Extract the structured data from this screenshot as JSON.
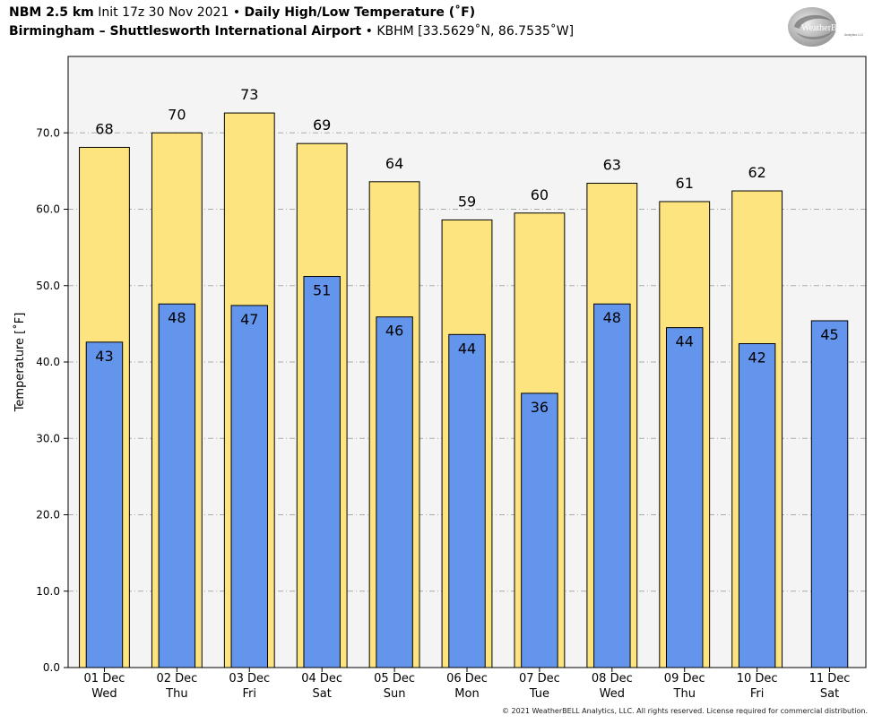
{
  "header": {
    "model": "NBM 2.5 km",
    "init": "Init 17z 30 Nov 2021",
    "bullet": "•",
    "product": "Daily High/Low Temperature (˚F)",
    "location": "Birmingham – Shuttlesworth International Airport",
    "station": "KBHM [33.5629˚N, 86.7535˚W]"
  },
  "logo": {
    "text": "WeatherBELL",
    "sub": "Analytics LLC"
  },
  "footer": {
    "copyright": "© 2021 WeatherBELL Analytics, LLC. All rights reserved. License required for commercial distribution."
  },
  "colors": {
    "high": "#fde47f",
    "low": "#6495ed",
    "plot_bg": "#f4f4f4",
    "grid": "#aaaaaa"
  },
  "chart_data": {
    "type": "bar",
    "title": "Daily High/Low Temperature (˚F)",
    "ylabel": "Temperature [˚F]",
    "ylim": [
      0,
      80
    ],
    "yticks": [
      "0.0",
      "10.0",
      "20.0",
      "30.0",
      "40.0",
      "50.0",
      "60.0",
      "70.0"
    ],
    "grid": true,
    "categories": [
      {
        "date": "01 Dec",
        "day": "Wed"
      },
      {
        "date": "02 Dec",
        "day": "Thu"
      },
      {
        "date": "03 Dec",
        "day": "Fri"
      },
      {
        "date": "04 Dec",
        "day": "Sat"
      },
      {
        "date": "05 Dec",
        "day": "Sun"
      },
      {
        "date": "06 Dec",
        "day": "Mon"
      },
      {
        "date": "07 Dec",
        "day": "Tue"
      },
      {
        "date": "08 Dec",
        "day": "Wed"
      },
      {
        "date": "09 Dec",
        "day": "Thu"
      },
      {
        "date": "10 Dec",
        "day": "Fri"
      },
      {
        "date": "11 Dec",
        "day": "Sat"
      }
    ],
    "series": [
      {
        "key": "high",
        "values": [
          68.1,
          70.0,
          72.6,
          68.6,
          63.6,
          58.6,
          59.5,
          63.4,
          61.0,
          62.4,
          null
        ],
        "labels": [
          "68",
          "70",
          "73",
          "69",
          "64",
          "59",
          "60",
          "63",
          "61",
          "62",
          ""
        ]
      },
      {
        "key": "low",
        "values": [
          42.6,
          47.6,
          47.4,
          51.2,
          45.9,
          43.6,
          35.9,
          47.6,
          44.5,
          42.4,
          45.4
        ],
        "labels": [
          "43",
          "48",
          "47",
          "51",
          "46",
          "44",
          "36",
          "48",
          "44",
          "42",
          "45"
        ]
      }
    ]
  }
}
